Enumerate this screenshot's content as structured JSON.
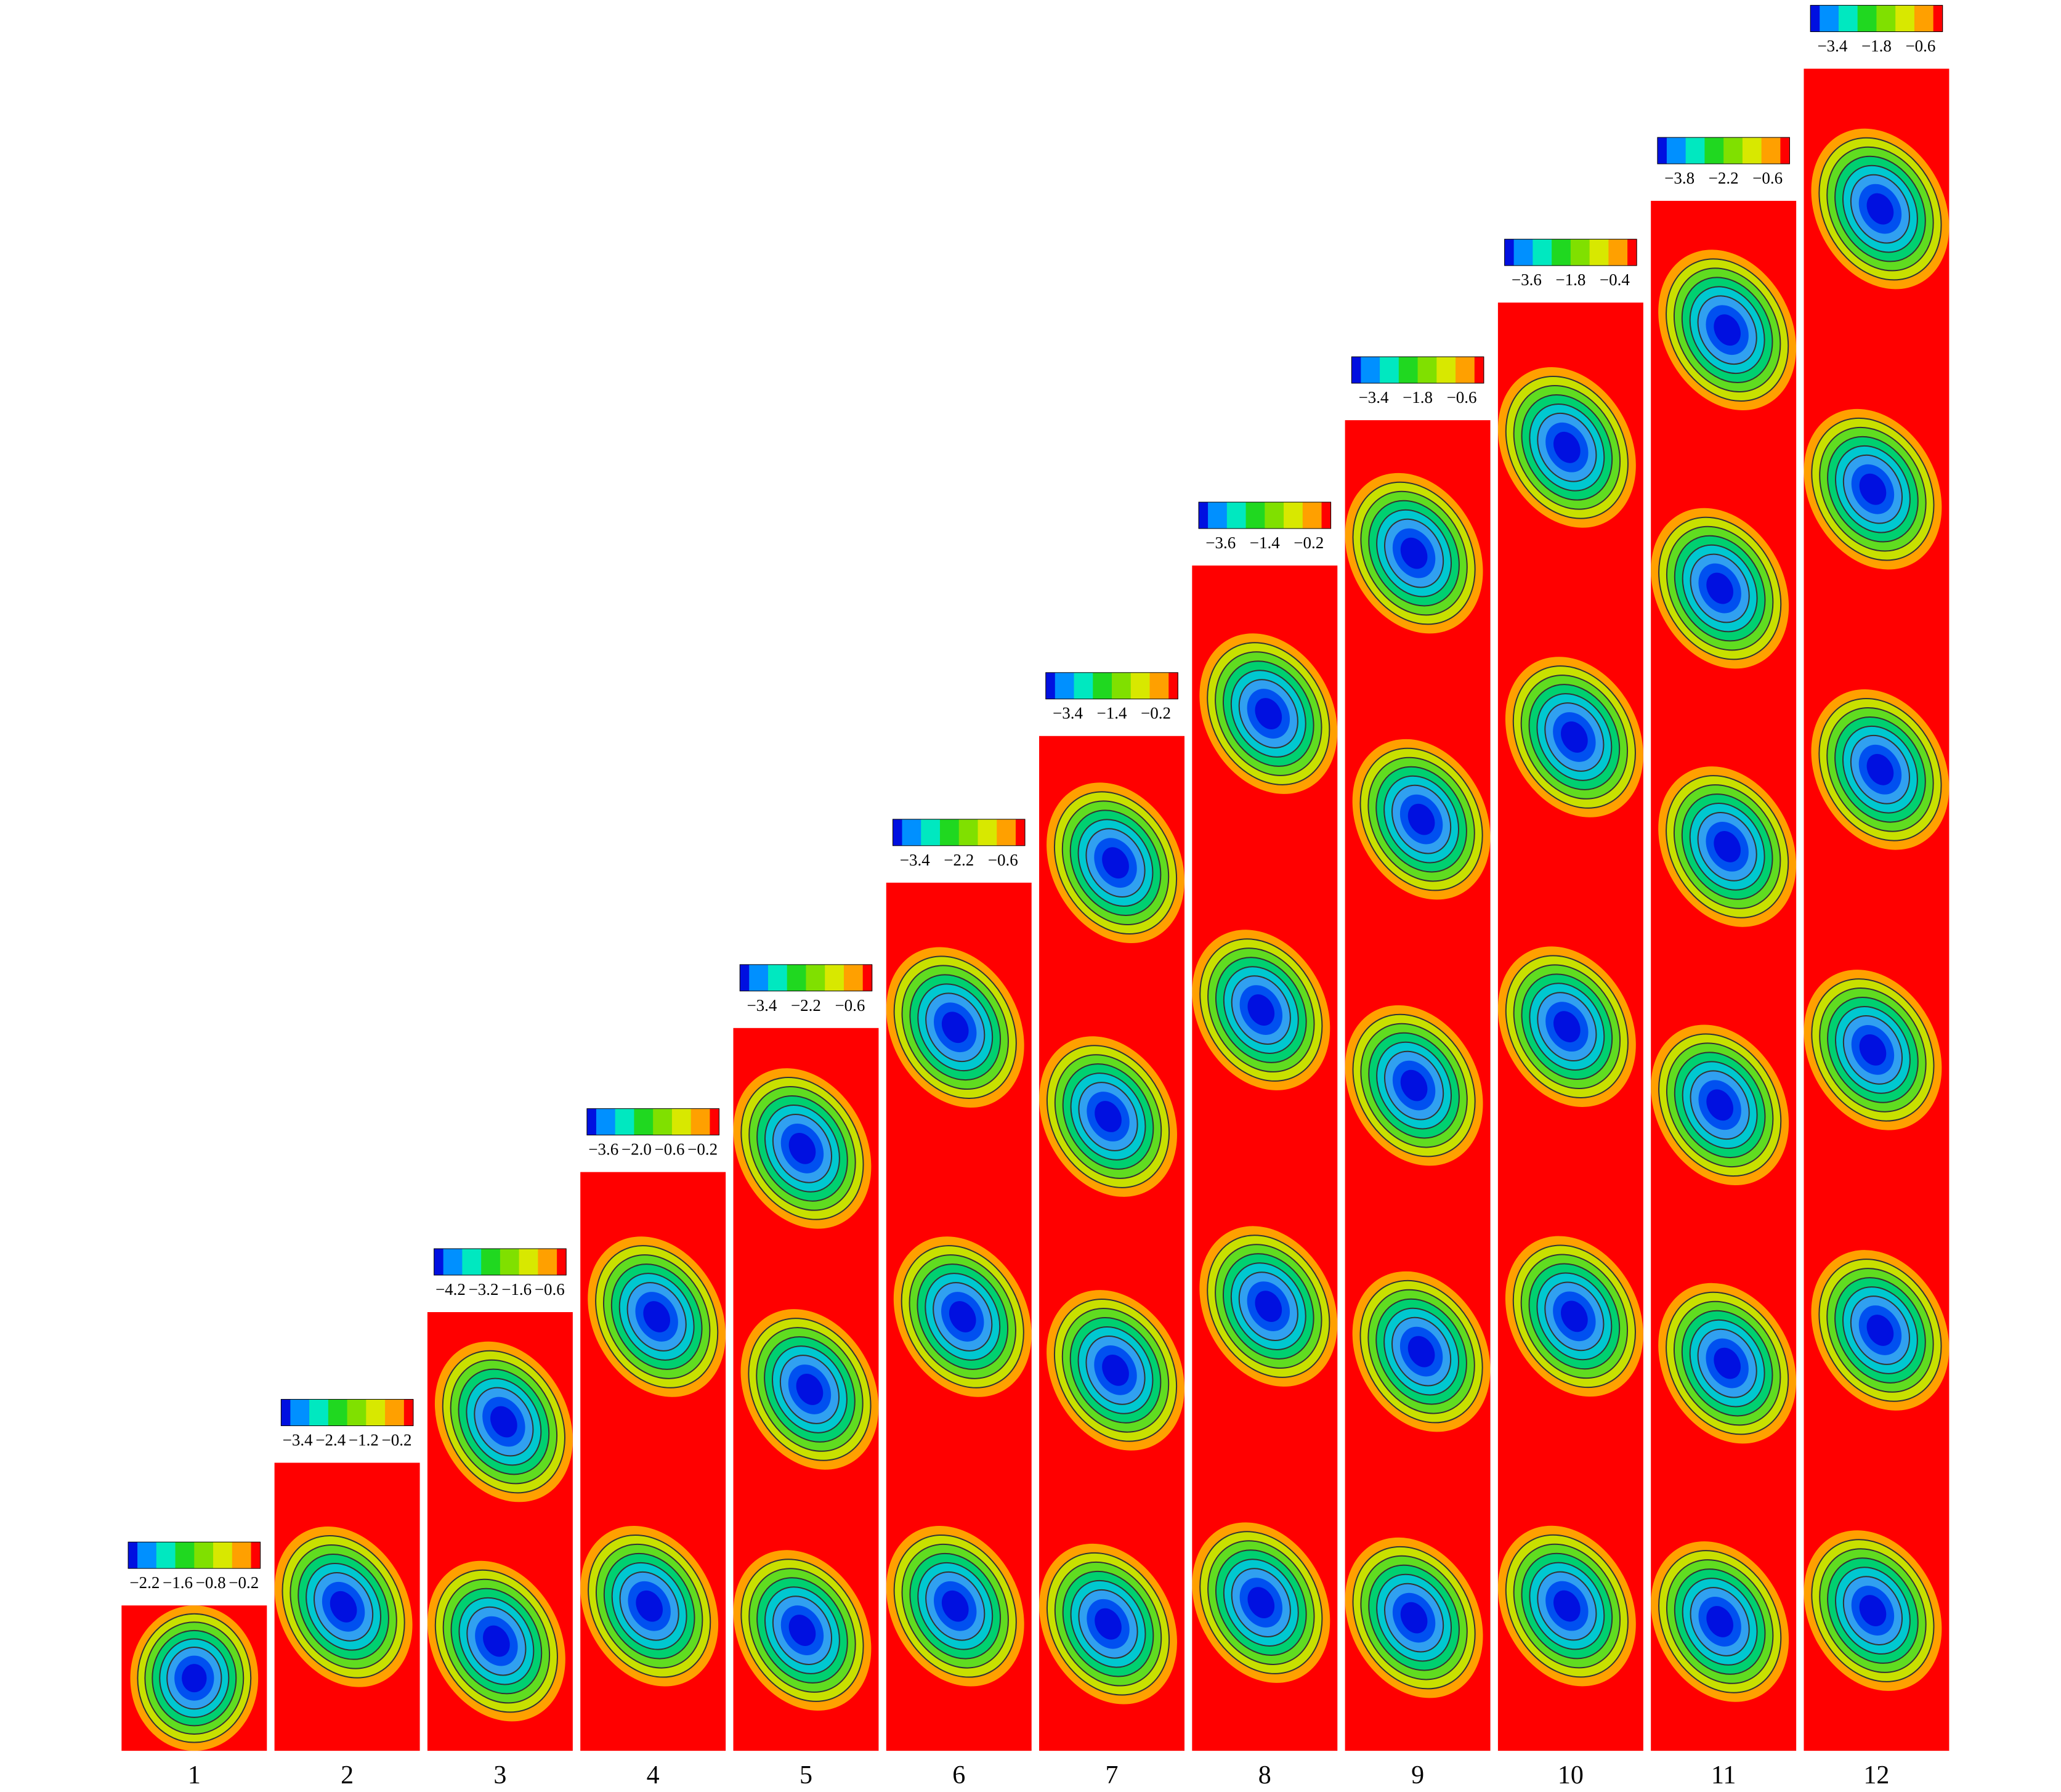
{
  "panels": [
    {
      "label": "1",
      "colorbar_labels": [
        "−2.2",
        "−1.6",
        "−0.8",
        "−0.2"
      ]
    },
    {
      "label": "2",
      "colorbar_labels": [
        "−3.4",
        "−2.4",
        "−1.2",
        "−0.2"
      ]
    },
    {
      "label": "3",
      "colorbar_labels": [
        "−4.2",
        "−3.2",
        "−1.6",
        "−0.6"
      ]
    },
    {
      "label": "4",
      "colorbar_labels": [
        "−3.6",
        "−2.0",
        "−0.6",
        "−0.2"
      ]
    },
    {
      "label": "5",
      "colorbar_labels": [
        "−3.4",
        "−2.2",
        "−0.6"
      ]
    },
    {
      "label": "6",
      "colorbar_labels": [
        "−3.4",
        "−2.2",
        "−0.6"
      ]
    },
    {
      "label": "7",
      "colorbar_labels": [
        "−3.4",
        "−1.4",
        "−0.2"
      ]
    },
    {
      "label": "8",
      "colorbar_labels": [
        "−3.6",
        "−1.4",
        "−0.2"
      ]
    },
    {
      "label": "9",
      "colorbar_labels": [
        "−3.4",
        "−1.8",
        "−0.6"
      ]
    },
    {
      "label": "10",
      "colorbar_labels": [
        "−3.6",
        "−1.8",
        "−0.4"
      ]
    },
    {
      "label": "11",
      "colorbar_labels": [
        "−3.8",
        "−2.2",
        "−0.6"
      ]
    },
    {
      "label": "12",
      "colorbar_labels": [
        "−3.4",
        "−1.8",
        "−0.6"
      ]
    }
  ]
}
